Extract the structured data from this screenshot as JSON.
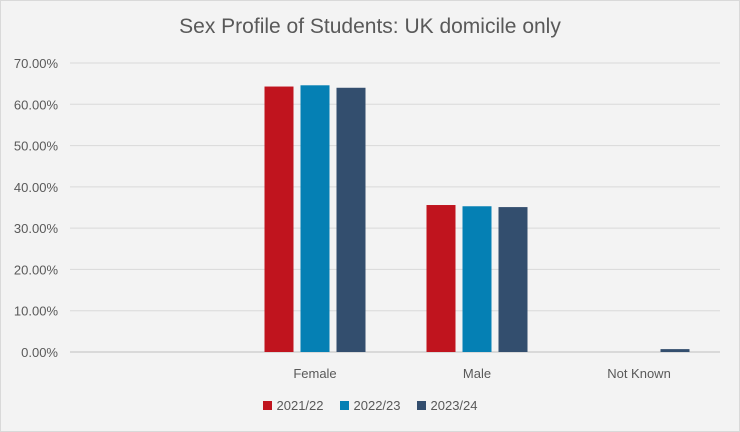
{
  "chart_data": {
    "type": "bar",
    "title": "Sex Profile of Students: UK domicile only",
    "xlabel": "",
    "ylabel": "",
    "categories": [
      "Female",
      "Male",
      "Not Known"
    ],
    "series": [
      {
        "name": "2021/22",
        "color": "#c0141e",
        "values": [
          64.3,
          35.6,
          0.0
        ]
      },
      {
        "name": "2022/23",
        "color": "#0580b4",
        "values": [
          64.6,
          35.3,
          0.0
        ]
      },
      {
        "name": "2023/24",
        "color": "#334e6e",
        "values": [
          64.0,
          35.1,
          0.7
        ]
      }
    ],
    "ylim": [
      0,
      70
    ],
    "yticks": [
      0,
      10,
      20,
      30,
      40,
      50,
      60,
      70
    ],
    "ytick_labels": [
      "0.00%",
      "10.00%",
      "20.00%",
      "30.00%",
      "40.00%",
      "50.00%",
      "60.00%",
      "70.00%"
    ],
    "grid": true,
    "legend_position": "bottom"
  }
}
